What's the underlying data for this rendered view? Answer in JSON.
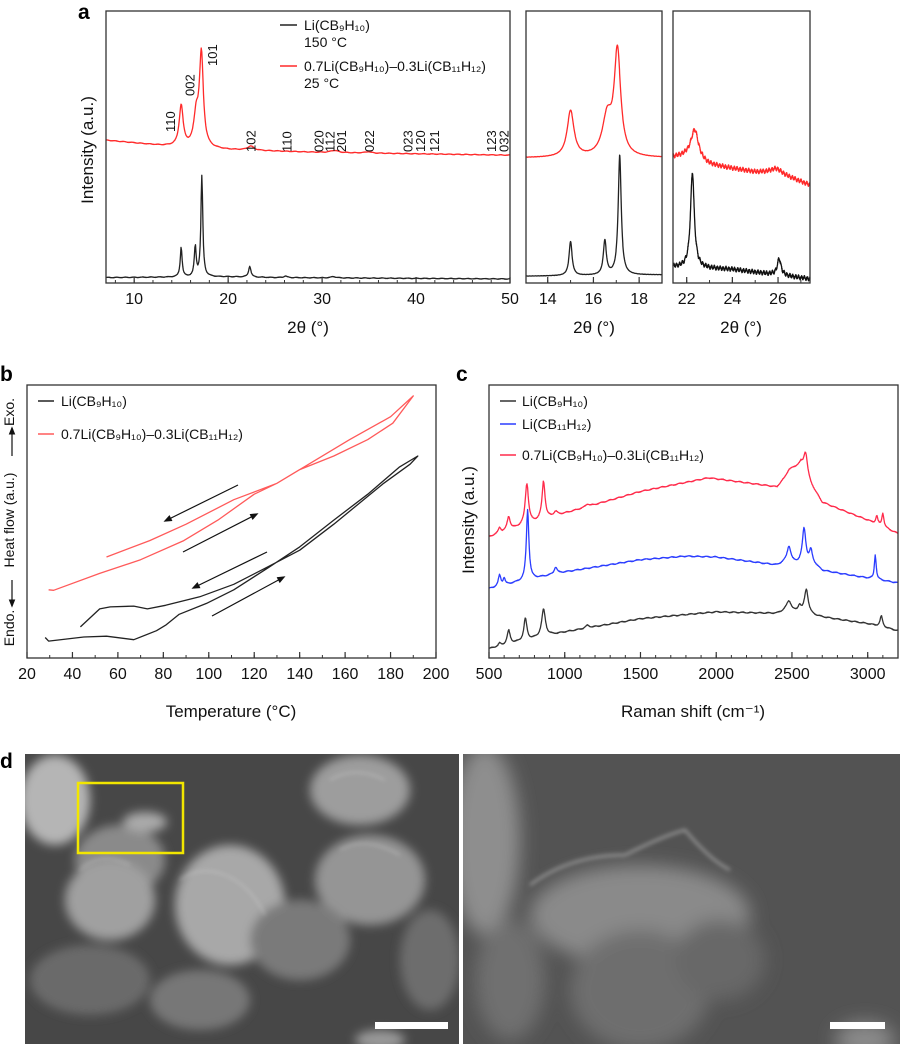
{
  "panel_letters": {
    "a": "a",
    "b": "b",
    "c": "c",
    "d": "d"
  },
  "chart_data": [
    {
      "id": "a-main",
      "type": "line",
      "panel": "a",
      "xlabel": "2θ (°)",
      "ylabel": "Intensity (a.u.)",
      "xlim": [
        7,
        50
      ],
      "ylim": [
        0,
        100
      ],
      "xticks": [
        10,
        20,
        30,
        40,
        50
      ],
      "legend": "top-right",
      "series": [
        {
          "name": "Li(CB₉H₁₀)",
          "subtitle": "150 °C",
          "color": "#222222",
          "baseline": [
            [
              7,
              2
            ],
            [
              20,
              2.3
            ],
            [
              25,
              2
            ],
            [
              50,
              1.5
            ]
          ],
          "peaks": [
            [
              15.0,
              11,
              0.12
            ],
            [
              16.5,
              11,
              0.12
            ],
            [
              17.2,
              37,
              0.12
            ],
            [
              22.3,
              4,
              0.15
            ],
            [
              26.1,
              0.6,
              0.2
            ],
            [
              31.2,
              0.5,
              0.3
            ]
          ]
        },
        {
          "name": "0.7Li(CB₉H₁₀)–0.3Li(CB₁₁H₁₂)",
          "subtitle": "25 °C",
          "color": "#ff2a2a",
          "baseline": [
            [
              7,
              52.5
            ],
            [
              13,
              50.5
            ],
            [
              20,
              49
            ],
            [
              30,
              48
            ],
            [
              50,
              47
            ]
          ],
          "peaks": [
            [
              15.0,
              15,
              0.25
            ],
            [
              16.6,
              11,
              0.3
            ],
            [
              17.15,
              34,
              0.25
            ],
            [
              22.4,
              1.5,
              0.4
            ],
            [
              31.3,
              0.8,
              0.5
            ],
            [
              34.9,
              0.5,
              0.4
            ]
          ]
        }
      ],
      "annotations": [
        {
          "text": "110",
          "x": 13.8
        },
        {
          "text": "002",
          "x": 15.9
        },
        {
          "text": "101",
          "x": 18.3
        },
        {
          "text": "102",
          "x": 22.4
        },
        {
          "text": "110",
          "x": 26.2
        },
        {
          "text": "020",
          "x": 29.6
        },
        {
          "text": "112",
          "x": 30.8
        },
        {
          "text": "201",
          "x": 32.0
        },
        {
          "text": "022",
          "x": 35.0
        },
        {
          "text": "023",
          "x": 39.1
        },
        {
          "text": "120",
          "x": 40.4
        },
        {
          "text": "121",
          "x": 41.9
        },
        {
          "text": "123",
          "x": 48.0
        },
        {
          "text": "032",
          "x": 49.3
        }
      ]
    },
    {
      "id": "a-inset1",
      "type": "line",
      "panel": "a",
      "xlabel": "2θ (°)",
      "xlim": [
        13.05,
        19.0
      ],
      "ylim": [
        0,
        100
      ],
      "xticks": [
        14,
        16,
        18
      ],
      "series": [
        {
          "color": "#222222",
          "baseline": [
            [
              13,
              2.5
            ],
            [
              19,
              3
            ]
          ],
          "peaks": [
            [
              15.0,
              12.5,
              0.08
            ],
            [
              16.5,
              12.5,
              0.08
            ],
            [
              17.15,
              44,
              0.08
            ]
          ]
        },
        {
          "color": "#ff2a2a",
          "baseline": [
            [
              13,
              46
            ],
            [
              19,
              46
            ]
          ],
          "peaks": [
            [
              15.0,
              17,
              0.18
            ],
            [
              16.6,
              14,
              0.25
            ],
            [
              17.05,
              38,
              0.17
            ]
          ]
        }
      ]
    },
    {
      "id": "a-inset2",
      "type": "line",
      "panel": "a",
      "xlabel": "2θ (°)",
      "xlim": [
        21.4,
        27.4
      ],
      "ylim": [
        0,
        100
      ],
      "xticks": [
        22,
        24,
        26
      ],
      "series": [
        {
          "color": "#111111",
          "baseline": [
            [
              21.4,
              5.9
            ],
            [
              24,
              5
            ],
            [
              27.4,
              1.5
            ]
          ],
          "peaks": [
            [
              22.25,
              35,
              0.1
            ],
            [
              26.05,
              6,
              0.1
            ]
          ]
        },
        {
          "color": "#ff2a2a",
          "baseline": [
            [
              21.4,
              46.3
            ],
            [
              22,
              46.5
            ],
            [
              23,
              43.4
            ],
            [
              25,
              40.8
            ],
            [
              26,
              40.5
            ],
            [
              27.4,
              36
            ]
          ],
          "peaks": [
            [
              22.35,
              11,
              0.2
            ],
            [
              25.9,
              1.5,
              0.3
            ]
          ]
        }
      ]
    },
    {
      "id": "b",
      "type": "line",
      "panel": "b",
      "xlabel": "Temperature (°C)",
      "ylabel_parts": [
        "Endo.",
        "Heat flow (a.u.)",
        "Exo."
      ],
      "xlim": [
        20,
        200
      ],
      "ylim": [
        0,
        100
      ],
      "xticks": [
        20,
        40,
        60,
        80,
        100,
        120,
        140,
        160,
        180,
        200
      ],
      "legend": "top-left",
      "series": [
        {
          "name": "Li(CB₉H₁₀)",
          "color": "#222222",
          "points": [
            [
              28,
              7.5
            ],
            [
              29.5,
              6.2
            ],
            [
              45,
              7.7
            ],
            [
              55,
              8
            ],
            [
              67,
              6.7
            ],
            [
              77,
              10
            ],
            [
              81,
              12
            ],
            [
              87,
              16
            ],
            [
              99,
              20
            ],
            [
              111,
              25
            ],
            [
              126,
              33
            ],
            [
              140,
              40.7
            ],
            [
              155,
              50.5
            ],
            [
              170,
              60
            ],
            [
              184,
              70
            ],
            [
              192,
              74
            ],
            [
              188.6,
              71
            ],
            [
              177,
              64
            ],
            [
              155,
              49
            ],
            [
              140,
              39.5
            ],
            [
              126,
              33.4
            ],
            [
              111,
              27
            ],
            [
              96,
              22.4
            ],
            [
              81,
              19.3
            ],
            [
              73,
              18
            ],
            [
              67,
              19
            ],
            [
              56.6,
              18.7
            ],
            [
              52,
              18
            ],
            [
              43.5,
              11.4
            ]
          ]
        },
        {
          "name": "0.7Li(CB₉H₁₀)–0.3Li(CB₁₁H₁₂)",
          "color": "#ff5a5a",
          "points": [
            [
              29.5,
              25
            ],
            [
              31.7,
              24.8
            ],
            [
              52,
              31
            ],
            [
              70,
              36
            ],
            [
              89,
              43
            ],
            [
              104,
              50.5
            ],
            [
              120,
              60
            ],
            [
              130,
              64
            ],
            [
              140,
              69
            ],
            [
              155,
              74
            ],
            [
              170,
              80
            ],
            [
              181,
              86
            ],
            [
              190,
              96
            ],
            [
              180,
              88.4
            ],
            [
              162,
              80
            ],
            [
              147,
              72.5
            ],
            [
              130,
              64
            ],
            [
              111,
              58
            ],
            [
              90,
              49
            ],
            [
              74,
              43
            ],
            [
              55,
              37
            ]
          ]
        }
      ]
    },
    {
      "id": "c",
      "type": "line",
      "panel": "c",
      "xlabel": "Raman shift (cm⁻¹)",
      "ylabel": "Intensity (a.u.)",
      "xlim": [
        500,
        3200
      ],
      "ylim": [
        0,
        100
      ],
      "xticks": [
        500,
        1000,
        1500,
        2000,
        2500,
        3000
      ],
      "legend": "top-left",
      "series": [
        {
          "name": "Li(CB₉H₁₀)",
          "color": "#333333",
          "baseline": [
            [
              500,
              3.4
            ],
            [
              700,
              5.9
            ],
            [
              1000,
              9.5
            ],
            [
              1500,
              14.4
            ],
            [
              2000,
              16.9
            ],
            [
              2400,
              16.3
            ],
            [
              2450,
              17
            ],
            [
              2600,
              16
            ],
            [
              2700,
              15
            ],
            [
              3000,
              12.6
            ],
            [
              3200,
              10
            ]
          ],
          "peaks": [
            [
              570,
              1,
              10
            ],
            [
              630,
              5,
              12
            ],
            [
              740,
              8,
              12
            ],
            [
              860,
              10,
              15
            ],
            [
              1150,
              1,
              15
            ],
            [
              2480,
              4,
              20
            ],
            [
              2550,
              2.5,
              12
            ],
            [
              2595,
              9,
              15
            ],
            [
              3090,
              4,
              10
            ]
          ]
        },
        {
          "name": "Li(CB₁₁H₁₂)",
          "color": "#2a3cff",
          "baseline": [
            [
              500,
              25.4
            ],
            [
              700,
              27.9
            ],
            [
              1000,
              31.5
            ],
            [
              1500,
              36
            ],
            [
              1800,
              37.3
            ],
            [
              2000,
              37
            ],
            [
              2400,
              34
            ],
            [
              2450,
              35
            ],
            [
              2650,
              34
            ],
            [
              2700,
              32
            ],
            [
              3200,
              27.5
            ]
          ],
          "peaks": [
            [
              570,
              4,
              10
            ],
            [
              600,
              2.5,
              8
            ],
            [
              755,
              26,
              10
            ],
            [
              940,
              2.5,
              12
            ],
            [
              2480,
              6,
              15
            ],
            [
              2580,
              13,
              14
            ],
            [
              2625,
              5,
              12
            ],
            [
              3050,
              9,
              7
            ]
          ]
        },
        {
          "name": "0.7Li(CB₉H₁₀)–0.3Li(CB₁₁H₁₂)",
          "color": "#ff2a4a",
          "baseline": [
            [
              500,
              44.4
            ],
            [
              700,
              48
            ],
            [
              1000,
              53
            ],
            [
              1500,
              61
            ],
            [
              1950,
              66
            ],
            [
              2400,
              62.7
            ],
            [
              2450,
              66
            ],
            [
              2480,
              69
            ],
            [
              2560,
              71
            ],
            [
              2620,
              64
            ],
            [
              2700,
              57
            ],
            [
              3000,
              50.5
            ],
            [
              3200,
              45.6
            ]
          ],
          "peaks": [
            [
              570,
              2,
              10
            ],
            [
              630,
              5,
              12
            ],
            [
              750,
              15,
              13
            ],
            [
              860,
              14,
              12
            ],
            [
              940,
              1.5,
              15
            ],
            [
              1150,
              1,
              15
            ],
            [
              2590,
              8,
              15
            ],
            [
              3060,
              3,
              8
            ],
            [
              3100,
              5,
              8
            ]
          ]
        }
      ]
    }
  ],
  "panel_d": {
    "images": [
      "SEM micrograph",
      "SEM micrograph (magnified)"
    ],
    "highlight_color": "#f2e600",
    "scale_bar_color": "#ffffff"
  }
}
